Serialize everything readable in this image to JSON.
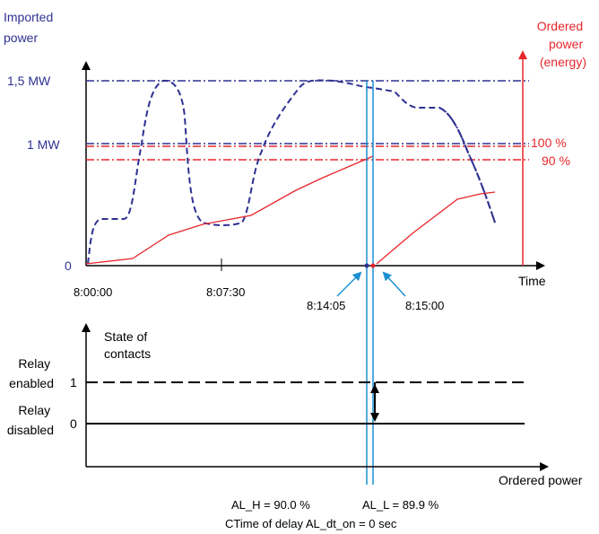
{
  "top_chart": {
    "y_axis_label_left": [
      "Imported",
      "power"
    ],
    "y_axis_label_right": [
      "Ordered",
      "power",
      "(energy)"
    ],
    "y_ticks": [
      "1,5 MW",
      "1 MW",
      "0"
    ],
    "right_levels": [
      "100 %",
      "90 %"
    ],
    "x_axis_label": "Time",
    "x_ticks": [
      "8:00:00",
      "8:07:30"
    ],
    "event_times": [
      "8:14:05",
      "8:15:00"
    ]
  },
  "bottom_chart": {
    "y_axis_label": [
      "State of",
      "contacts"
    ],
    "states": [
      {
        "label": [
          "Relay",
          "enabled"
        ],
        "value": "1"
      },
      {
        "label": [
          "Relay",
          "disabled"
        ],
        "value": "0"
      }
    ],
    "x_axis_label": "Ordered power"
  },
  "footer": {
    "al_h": "AL_H = 90.0 %",
    "al_l": "AL_L = 89.9 %",
    "delay": "CTime of delay AL_dt_on = 0 sec"
  },
  "colors": {
    "imported": "#2e3192",
    "ordered": "#e8262b",
    "marker": "#1b8fd2",
    "axis": "#000000"
  }
}
